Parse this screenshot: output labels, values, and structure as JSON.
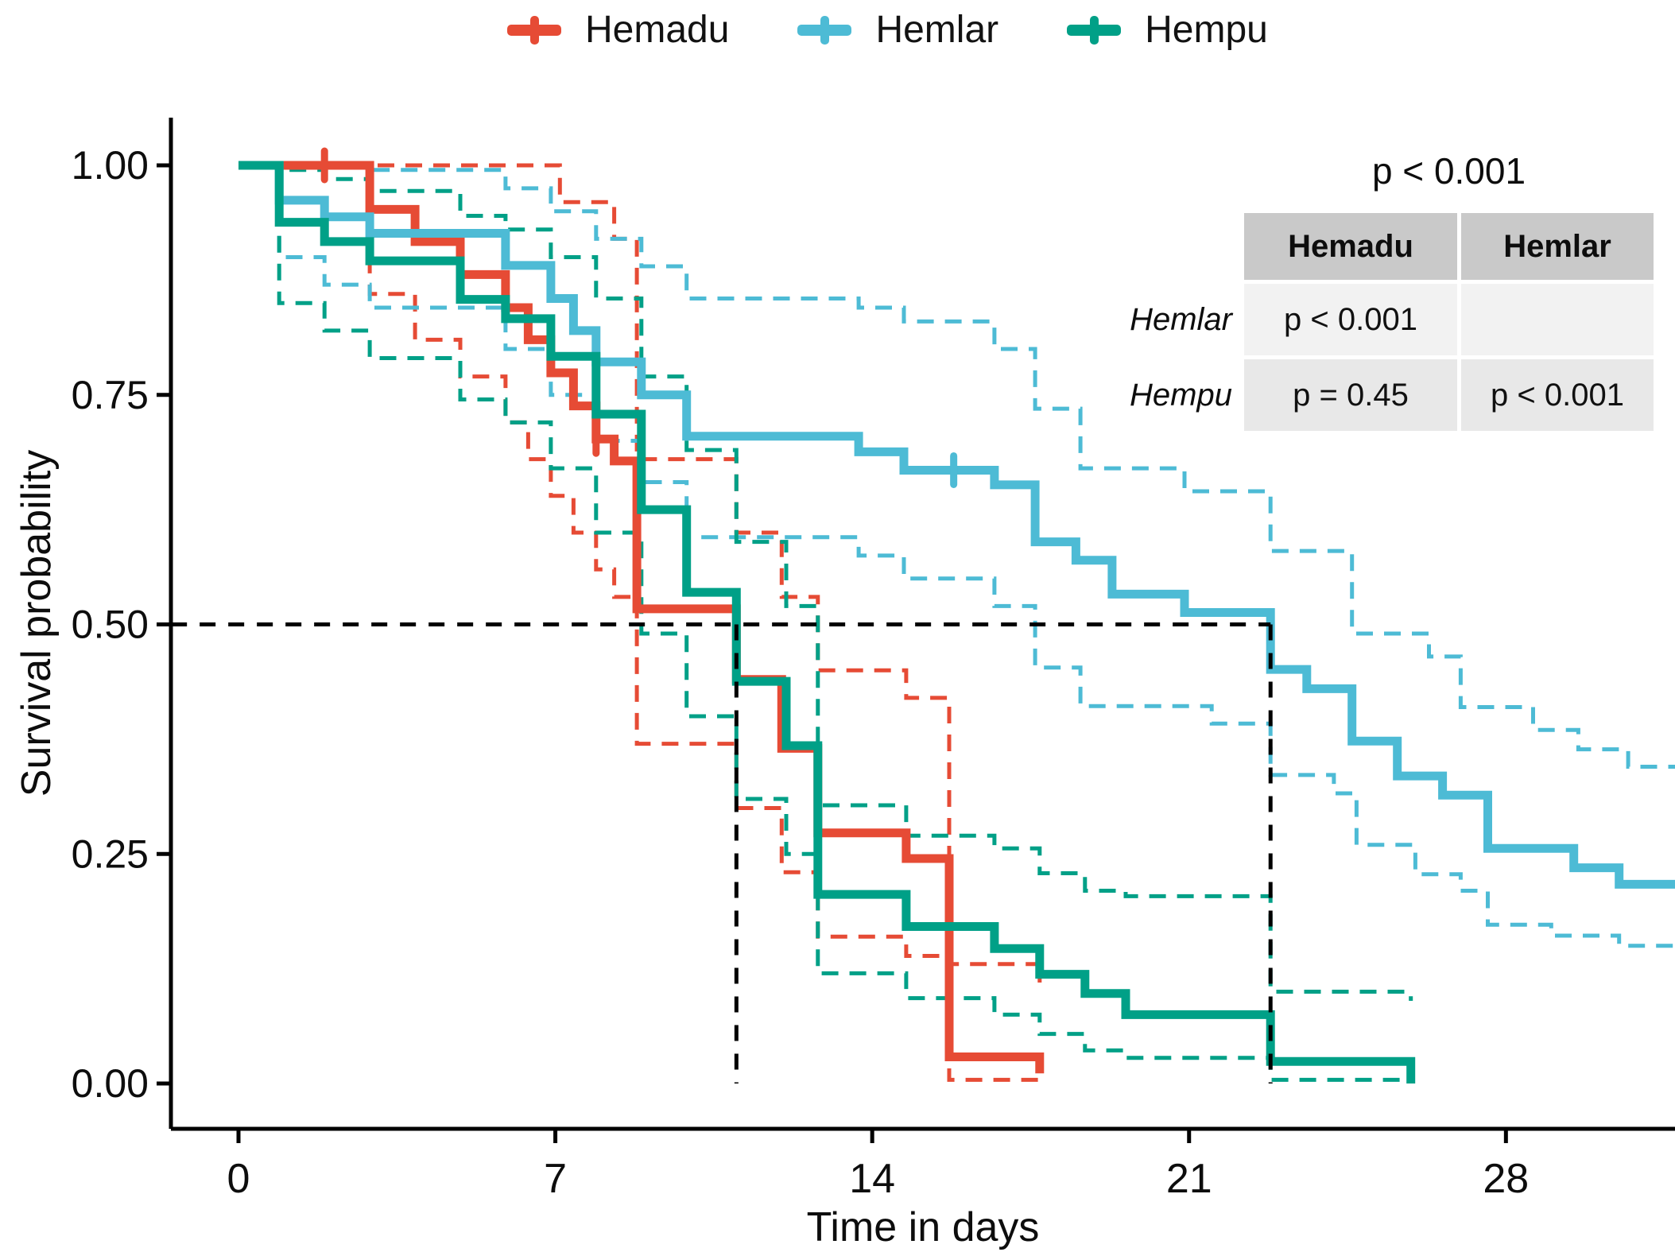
{
  "legend": {
    "items": [
      {
        "label": "Hemadu",
        "color": "#E64B35"
      },
      {
        "label": "Hemlar",
        "color": "#4DBBD5"
      },
      {
        "label": "Hempu",
        "color": "#00A087"
      }
    ]
  },
  "annotation": {
    "global_p": "p < 0.001"
  },
  "pairwise_table": {
    "col_headers": [
      "Hemadu",
      "Hemlar"
    ],
    "rows": [
      {
        "label": "Hemlar",
        "cells": [
          "p < 0.001",
          ""
        ]
      },
      {
        "label": "Hempu",
        "cells": [
          "p = 0.45",
          "p < 0.001"
        ]
      }
    ],
    "header_bg": "#c9c9c9",
    "row1_bg": "#f2f2f2",
    "row2_bg": "#e8e8e8"
  },
  "axes": {
    "x_label": "Time in days",
    "y_label": "Survival probability",
    "x_ticks": [
      0,
      7,
      14,
      21,
      28
    ],
    "y_ticks": [
      {
        "label": "1.00",
        "value": 1.0
      },
      {
        "label": "0.75",
        "value": 0.75
      },
      {
        "label": "0.50",
        "value": 0.5
      },
      {
        "label": "0.25",
        "value": 0.25
      },
      {
        "label": "0.00",
        "value": 0.0
      }
    ],
    "x_domain": [
      -1.49,
      31.74
    ],
    "y_domain": [
      0,
      1
    ],
    "grid": false,
    "legend_position": "top"
  },
  "chart_data": {
    "type": "line",
    "variant": "kaplan_meier_survival_steps",
    "title": "",
    "xlabel": "Time in days",
    "ylabel": "Survival probability",
    "xlim": [
      -1.5,
      31.74
    ],
    "ylim": [
      0,
      1
    ],
    "series": [
      {
        "name": "Hemadu",
        "color": "#E64B35",
        "steps": [
          [
            0,
            1.0
          ],
          [
            2.9,
            0.952
          ],
          [
            3.9,
            0.917
          ],
          [
            4.9,
            0.881
          ],
          [
            5.9,
            0.845
          ],
          [
            6.4,
            0.81
          ],
          [
            6.9,
            0.774
          ],
          [
            7.4,
            0.738
          ],
          [
            7.9,
            0.702
          ],
          [
            8.3,
            0.678
          ],
          [
            8.8,
            0.517
          ],
          [
            11.0,
            0.44
          ],
          [
            12.0,
            0.365
          ],
          [
            12.8,
            0.273
          ],
          [
            14.75,
            0.245
          ],
          [
            15.7,
            0.029
          ],
          [
            17.7,
            0.011
          ]
        ],
        "extend_to": null,
        "ci_upper": [
          [
            0,
            1.0
          ],
          [
            7.1,
            0.96
          ],
          [
            8.3,
            0.92
          ],
          [
            8.8,
            0.68
          ],
          [
            11.0,
            0.6
          ],
          [
            12.0,
            0.53
          ],
          [
            12.8,
            0.45
          ],
          [
            14.75,
            0.42
          ],
          [
            15.7,
            0.13
          ],
          [
            17.7,
            0.11
          ]
        ],
        "ci_lower": [
          [
            0,
            1.0
          ],
          [
            2.9,
            0.86
          ],
          [
            3.9,
            0.81
          ],
          [
            4.9,
            0.77
          ],
          [
            5.9,
            0.72
          ],
          [
            6.4,
            0.68
          ],
          [
            6.9,
            0.64
          ],
          [
            7.4,
            0.6
          ],
          [
            7.9,
            0.56
          ],
          [
            8.3,
            0.53
          ],
          [
            8.8,
            0.37
          ],
          [
            11.0,
            0.3
          ],
          [
            12.0,
            0.23
          ],
          [
            12.8,
            0.16
          ],
          [
            14.75,
            0.139
          ],
          [
            15.7,
            0.004
          ],
          [
            17.7,
            0.002
          ]
        ],
        "censor_marks": [
          [
            1.9,
            1.0
          ],
          [
            7.9,
            0.702
          ]
        ]
      },
      {
        "name": "Hemlar",
        "color": "#4DBBD5",
        "steps": [
          [
            0,
            1.0
          ],
          [
            0.9,
            0.962
          ],
          [
            1.9,
            0.944
          ],
          [
            2.9,
            0.926
          ],
          [
            5.9,
            0.891
          ],
          [
            6.9,
            0.855
          ],
          [
            7.4,
            0.82
          ],
          [
            7.9,
            0.786
          ],
          [
            8.9,
            0.75
          ],
          [
            9.9,
            0.705
          ],
          [
            13.7,
            0.688
          ],
          [
            14.7,
            0.668
          ],
          [
            16.7,
            0.652
          ],
          [
            17.6,
            0.59
          ],
          [
            18.5,
            0.57
          ],
          [
            19.3,
            0.533
          ],
          [
            20.9,
            0.513
          ],
          [
            22.8,
            0.451
          ],
          [
            23.6,
            0.43
          ],
          [
            24.6,
            0.373
          ],
          [
            25.6,
            0.335
          ],
          [
            26.6,
            0.314
          ],
          [
            27.6,
            0.256
          ],
          [
            29.5,
            0.235
          ],
          [
            30.5,
            0.217
          ]
        ],
        "extend_to": 31.74,
        "ci_upper": [
          [
            0,
            1.0
          ],
          [
            2.9,
            0.995
          ],
          [
            5.9,
            0.975
          ],
          [
            6.9,
            0.95
          ],
          [
            7.9,
            0.92
          ],
          [
            8.9,
            0.89
          ],
          [
            9.9,
            0.855
          ],
          [
            13.7,
            0.845
          ],
          [
            14.7,
            0.83
          ],
          [
            16.7,
            0.8
          ],
          [
            17.6,
            0.735
          ],
          [
            18.6,
            0.67
          ],
          [
            20.9,
            0.645
          ],
          [
            22.8,
            0.58
          ],
          [
            24.6,
            0.49
          ],
          [
            26.3,
            0.465
          ],
          [
            27.0,
            0.41
          ],
          [
            28.6,
            0.385
          ],
          [
            29.6,
            0.364
          ],
          [
            30.7,
            0.345
          ]
        ],
        "ci_lower": [
          [
            0,
            1.0
          ],
          [
            0.9,
            0.9
          ],
          [
            1.9,
            0.87
          ],
          [
            2.9,
            0.845
          ],
          [
            5.9,
            0.8
          ],
          [
            6.9,
            0.75
          ],
          [
            7.9,
            0.7
          ],
          [
            8.9,
            0.655
          ],
          [
            9.9,
            0.595
          ],
          [
            13.7,
            0.575
          ],
          [
            14.7,
            0.55
          ],
          [
            16.7,
            0.52
          ],
          [
            17.6,
            0.453
          ],
          [
            18.6,
            0.411
          ],
          [
            21.5,
            0.392
          ],
          [
            22.8,
            0.336
          ],
          [
            24.2,
            0.316
          ],
          [
            24.7,
            0.26
          ],
          [
            26.0,
            0.228
          ],
          [
            27.0,
            0.21
          ],
          [
            27.6,
            0.173
          ],
          [
            29.0,
            0.161
          ],
          [
            30.5,
            0.15
          ]
        ],
        "censor_marks": [
          [
            15.8,
            0.668
          ]
        ]
      },
      {
        "name": "Hempu",
        "color": "#00A087",
        "steps": [
          [
            0,
            1.0
          ],
          [
            0.9,
            0.938
          ],
          [
            1.9,
            0.917
          ],
          [
            2.9,
            0.896
          ],
          [
            4.9,
            0.854
          ],
          [
            5.9,
            0.833
          ],
          [
            6.9,
            0.792
          ],
          [
            7.9,
            0.729
          ],
          [
            8.9,
            0.625
          ],
          [
            9.9,
            0.535
          ],
          [
            11.0,
            0.438
          ],
          [
            12.1,
            0.368
          ],
          [
            12.8,
            0.206
          ],
          [
            14.75,
            0.171
          ],
          [
            16.7,
            0.147
          ],
          [
            17.7,
            0.119
          ],
          [
            18.7,
            0.098
          ],
          [
            19.6,
            0.075
          ],
          [
            22.8,
            0.024
          ],
          [
            25.9,
            0.0
          ]
        ],
        "extend_to": null,
        "ci_upper": [
          [
            0,
            1.0
          ],
          [
            0.9,
            0.995
          ],
          [
            1.9,
            0.985
          ],
          [
            2.9,
            0.972
          ],
          [
            4.9,
            0.945
          ],
          [
            5.9,
            0.93
          ],
          [
            6.9,
            0.9
          ],
          [
            7.9,
            0.855
          ],
          [
            8.9,
            0.77
          ],
          [
            9.9,
            0.69
          ],
          [
            11.0,
            0.59
          ],
          [
            12.1,
            0.52
          ],
          [
            12.8,
            0.303
          ],
          [
            14.75,
            0.27
          ],
          [
            16.7,
            0.256
          ],
          [
            17.7,
            0.229
          ],
          [
            18.7,
            0.21
          ],
          [
            19.6,
            0.204
          ],
          [
            22.8,
            0.1
          ],
          [
            25.9,
            0.09
          ]
        ],
        "ci_lower": [
          [
            0,
            1.0
          ],
          [
            0.9,
            0.85
          ],
          [
            1.9,
            0.82
          ],
          [
            2.9,
            0.79
          ],
          [
            4.9,
            0.745
          ],
          [
            5.9,
            0.72
          ],
          [
            6.9,
            0.67
          ],
          [
            7.9,
            0.6
          ],
          [
            8.9,
            0.49
          ],
          [
            9.9,
            0.4
          ],
          [
            11.0,
            0.31
          ],
          [
            12.1,
            0.25
          ],
          [
            12.8,
            0.12
          ],
          [
            14.75,
            0.093
          ],
          [
            16.7,
            0.075
          ],
          [
            17.7,
            0.054
          ],
          [
            18.7,
            0.036
          ],
          [
            19.6,
            0.028
          ],
          [
            22.8,
            0.004
          ],
          [
            25.9,
            0.002
          ]
        ],
        "censor_marks": []
      }
    ],
    "reference_lines": {
      "color": "#000000",
      "horizontal": {
        "survival": 0.5,
        "from_day": -1.49,
        "to_day": 22.8
      },
      "verticals": [
        {
          "day": 11.0,
          "from_survival": 0.5,
          "to_survival": 0.0
        },
        {
          "day": 22.8,
          "from_survival": 0.5,
          "to_survival": 0.0
        }
      ]
    }
  }
}
